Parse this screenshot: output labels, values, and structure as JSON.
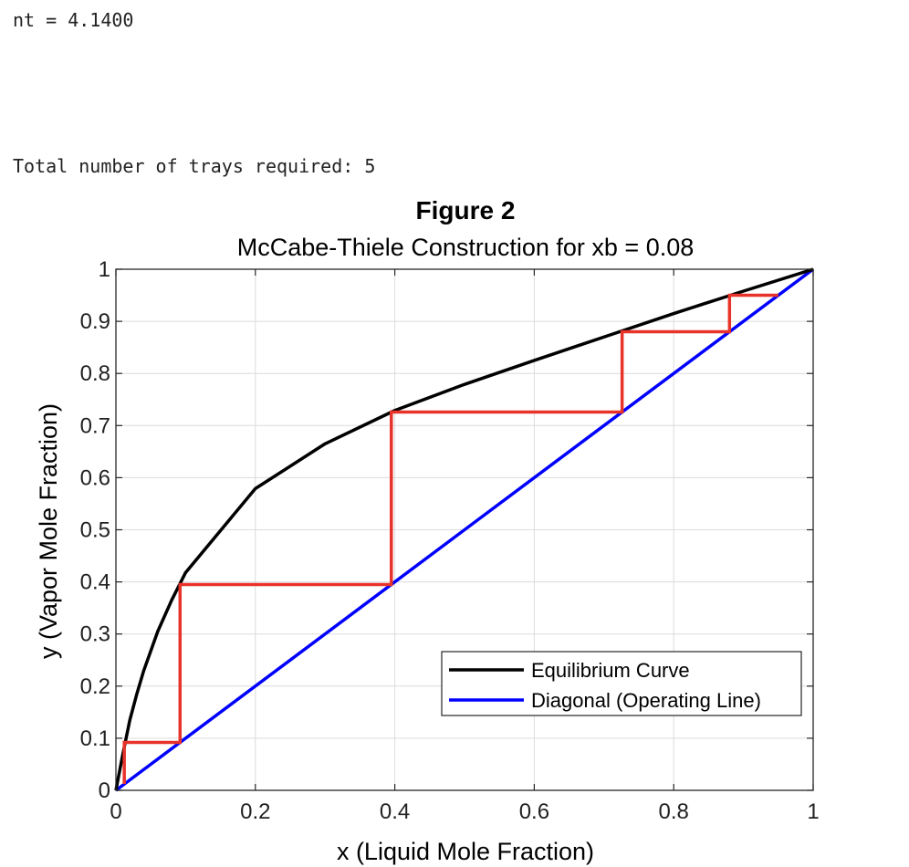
{
  "console": {
    "line1": "nt = 4.1400",
    "line2": "Total number of trays required: 5"
  },
  "chart_data": {
    "type": "line",
    "figure_title": "Figure 2",
    "title": "McCabe-Thiele Construction for xb = 0.08",
    "xlabel": "x (Liquid Mole Fraction)",
    "ylabel": "y (Vapor Mole Fraction)",
    "xlim": [
      0,
      1
    ],
    "ylim": [
      0,
      1
    ],
    "xticks": [
      0,
      0.2,
      0.4,
      0.6,
      0.8,
      1
    ],
    "xtick_labels": [
      "0",
      "0.2",
      "0.4",
      "0.6",
      "0.8",
      "1"
    ],
    "yticks": [
      0,
      0.1,
      0.2,
      0.3,
      0.4,
      0.5,
      0.6,
      0.7,
      0.8,
      0.9,
      1
    ],
    "ytick_labels": [
      "0",
      "0.1",
      "0.2",
      "0.3",
      "0.4",
      "0.5",
      "0.6",
      "0.7",
      "0.8",
      "0.9",
      "1"
    ],
    "grid": true,
    "legend_position": "bottom-right",
    "series": [
      {
        "name": "Equilibrium Curve",
        "color": "#000000",
        "x": [
          0,
          0.01,
          0.02,
          0.03,
          0.04,
          0.06,
          0.08,
          0.1,
          0.2,
          0.3,
          0.4,
          0.5,
          0.6,
          0.7,
          0.8,
          0.9,
          1.0
        ],
        "y": [
          0,
          0.07,
          0.135,
          0.185,
          0.23,
          0.305,
          0.365,
          0.418,
          0.579,
          0.665,
          0.729,
          0.779,
          0.825,
          0.87,
          0.915,
          0.958,
          1.0
        ]
      },
      {
        "name": "Diagonal (Operating Line)",
        "color": "#0000ff",
        "x": [
          0,
          1
        ],
        "y": [
          0,
          1
        ]
      }
    ],
    "steps": {
      "color": "#e8332a",
      "x": [
        0.012,
        0.012,
        0.092,
        0.092,
        0.395,
        0.395,
        0.726,
        0.726,
        0.88,
        0.88,
        0.95
      ],
      "y": [
        0.012,
        0.092,
        0.092,
        0.395,
        0.395,
        0.726,
        0.726,
        0.88,
        0.88,
        0.95,
        0.95
      ]
    }
  }
}
